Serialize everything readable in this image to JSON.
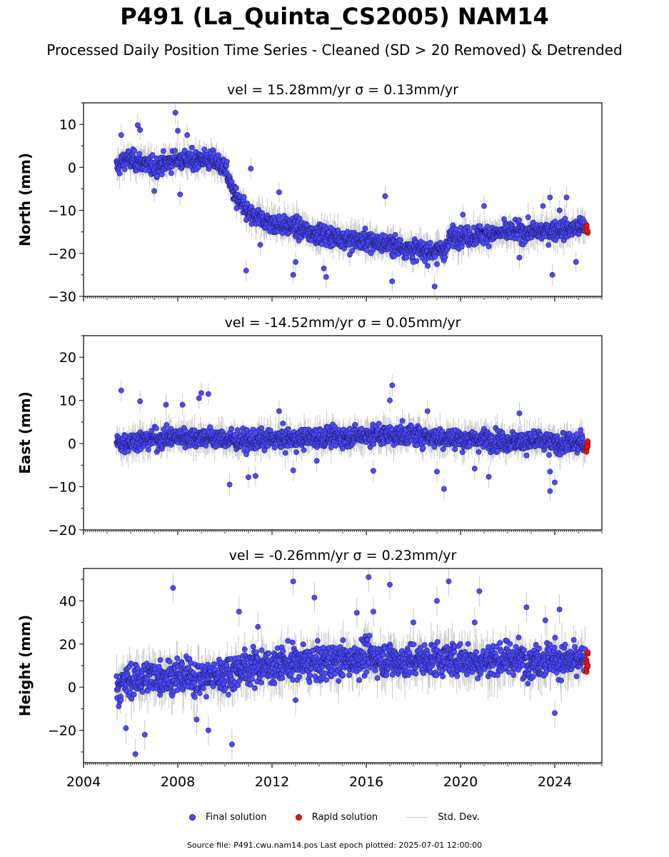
{
  "title": "P491 (La_Quinta_CS2005) NAM14",
  "subtitle": "Processed Daily Position Time Series - Cleaned (SD > 20 Removed) & Detrended",
  "footer": "Source file: P491.cwu.nam14.pos  Last epoch plotted: 2025-07-01 12:00:00",
  "legend": {
    "final": "Final solution",
    "rapid": "Rapid solution",
    "sd": "Std. Dev."
  },
  "colors": {
    "final_fill": "#4b4bff",
    "final_edge": "#1a1a66",
    "rapid_fill": "#ee1111",
    "std_dev": "#c8c8c8"
  },
  "chart_data": [
    {
      "type": "scatter",
      "title": "vel = 15.28mm/yr   σ = 0.13mm/yr",
      "ylabel": "North (mm)",
      "xlim": [
        2004,
        2026
      ],
      "ylim": [
        -30,
        15
      ],
      "yticks": [
        -30,
        -20,
        -10,
        0,
        10
      ],
      "series_final": [
        [
          2005.4,
          0
        ],
        [
          2005.8,
          2
        ],
        [
          2006.5,
          1
        ],
        [
          2007.0,
          0
        ],
        [
          2007.5,
          1
        ],
        [
          2008.0,
          2
        ],
        [
          2008.5,
          1.5
        ],
        [
          2009.0,
          2
        ],
        [
          2009.5,
          1.5
        ],
        [
          2010.0,
          0
        ],
        [
          2010.3,
          -5
        ],
        [
          2010.6,
          -8
        ],
        [
          2011.0,
          -11
        ],
        [
          2011.5,
          -12
        ],
        [
          2012.0,
          -13
        ],
        [
          2012.5,
          -13.5
        ],
        [
          2013.0,
          -14
        ],
        [
          2013.5,
          -15
        ],
        [
          2014.0,
          -15.5
        ],
        [
          2014.5,
          -16
        ],
        [
          2015.0,
          -16.5
        ],
        [
          2015.5,
          -17
        ],
        [
          2016.0,
          -17
        ],
        [
          2016.5,
          -17.5
        ],
        [
          2017.0,
          -18
        ],
        [
          2017.5,
          -18.5
        ],
        [
          2018.0,
          -19
        ],
        [
          2018.5,
          -19.5
        ],
        [
          2019.0,
          -19.5
        ],
        [
          2019.4,
          -19
        ],
        [
          2019.6,
          -16
        ],
        [
          2020.0,
          -16
        ],
        [
          2020.5,
          -16
        ],
        [
          2021.0,
          -15.5
        ],
        [
          2021.5,
          -15.5
        ],
        [
          2022.0,
          -15
        ],
        [
          2022.5,
          -15
        ],
        [
          2023.0,
          -15
        ],
        [
          2023.5,
          -15
        ],
        [
          2024.0,
          -14.5
        ],
        [
          2024.5,
          -14.5
        ],
        [
          2025.0,
          -14
        ],
        [
          2025.3,
          -14
        ]
      ],
      "series_rapid": [
        [
          2025.35,
          -14
        ],
        [
          2025.4,
          -15
        ]
      ],
      "outliers": [
        [
          2005.6,
          7.5
        ],
        [
          2006.3,
          9.8
        ],
        [
          2006.4,
          8.7
        ],
        [
          2007.0,
          -5.5
        ],
        [
          2007.9,
          12.7
        ],
        [
          2008.0,
          8.5
        ],
        [
          2008.1,
          -6.3
        ],
        [
          2008.4,
          7.5
        ],
        [
          2010.5,
          -9.5
        ],
        [
          2010.9,
          -24
        ],
        [
          2011.1,
          -0.3
        ],
        [
          2011.5,
          -18
        ],
        [
          2012.3,
          -5.8
        ],
        [
          2012.9,
          -25
        ],
        [
          2013.0,
          -22
        ],
        [
          2014.2,
          -23.5
        ],
        [
          2014.3,
          -25.5
        ],
        [
          2015.3,
          -20.3
        ],
        [
          2016.2,
          -20
        ],
        [
          2016.8,
          -6.7
        ],
        [
          2017.1,
          -26.5
        ],
        [
          2018.0,
          -22
        ],
        [
          2018.9,
          -27.7
        ],
        [
          2019.0,
          -22.5
        ],
        [
          2020.1,
          -11
        ],
        [
          2021.0,
          -9
        ],
        [
          2022.5,
          -21
        ],
        [
          2023.5,
          -9
        ],
        [
          2023.8,
          -7
        ],
        [
          2023.9,
          -25
        ],
        [
          2024.2,
          -10
        ],
        [
          2024.5,
          -7
        ],
        [
          2024.9,
          -22
        ]
      ]
    },
    {
      "type": "scatter",
      "title": "vel = -14.52mm/yr   σ = 0.05mm/yr",
      "ylabel": "East (mm)",
      "xlim": [
        2004,
        2026
      ],
      "ylim": [
        -20,
        25
      ],
      "yticks": [
        -20,
        -10,
        0,
        10,
        20
      ],
      "series_final": [
        [
          2005.4,
          0
        ],
        [
          2006.0,
          0.5
        ],
        [
          2007.0,
          1
        ],
        [
          2008.0,
          1.5
        ],
        [
          2009.0,
          1.5
        ],
        [
          2010.0,
          1
        ],
        [
          2011.0,
          0.5
        ],
        [
          2012.0,
          1
        ],
        [
          2013.0,
          1
        ],
        [
          2014.0,
          1.5
        ],
        [
          2015.0,
          1.5
        ],
        [
          2016.0,
          2
        ],
        [
          2017.0,
          2
        ],
        [
          2018.0,
          2
        ],
        [
          2019.0,
          1.5
        ],
        [
          2020.0,
          1
        ],
        [
          2021.0,
          1
        ],
        [
          2022.0,
          0.5
        ],
        [
          2023.0,
          0.5
        ],
        [
          2024.0,
          0
        ],
        [
          2025.0,
          0
        ],
        [
          2025.3,
          0
        ]
      ],
      "series_rapid": [
        [
          2025.35,
          -1
        ],
        [
          2025.4,
          0
        ]
      ],
      "outliers": [
        [
          2005.6,
          12.3
        ],
        [
          2006.4,
          9.8
        ],
        [
          2007.5,
          9
        ],
        [
          2008.2,
          9
        ],
        [
          2008.9,
          10.5
        ],
        [
          2009.0,
          11.7
        ],
        [
          2009.3,
          11.5
        ],
        [
          2010.2,
          -9.5
        ],
        [
          2011.0,
          -7.8
        ],
        [
          2011.3,
          -7.5
        ],
        [
          2012.3,
          7.5
        ],
        [
          2012.9,
          -6.2
        ],
        [
          2013.9,
          -4
        ],
        [
          2016.3,
          -6.3
        ],
        [
          2017.0,
          10
        ],
        [
          2017.1,
          13.5
        ],
        [
          2018.6,
          7.5
        ],
        [
          2019.0,
          -6.5
        ],
        [
          2019.3,
          -10.5
        ],
        [
          2020.6,
          -5.8
        ],
        [
          2021.2,
          -7.7
        ],
        [
          2022.5,
          7
        ],
        [
          2023.8,
          -6.5
        ],
        [
          2023.8,
          -11
        ],
        [
          2024.0,
          -9
        ]
      ]
    },
    {
      "type": "scatter",
      "title": "vel = -0.26mm/yr   σ = 0.23mm/yr",
      "ylabel": "Height (mm)",
      "xlim": [
        2004,
        2026
      ],
      "ylim": [
        -35,
        55
      ],
      "yticks": [
        -20,
        0,
        20,
        40
      ],
      "xticks": [
        2004,
        2008,
        2012,
        2016,
        2020,
        2024
      ],
      "series_final": [
        [
          2005.4,
          0
        ],
        [
          2006.0,
          3
        ],
        [
          2006.5,
          4
        ],
        [
          2007.0,
          5
        ],
        [
          2007.5,
          5
        ],
        [
          2008.0,
          5
        ],
        [
          2008.5,
          5
        ],
        [
          2009.0,
          4
        ],
        [
          2009.5,
          5
        ],
        [
          2010.0,
          6
        ],
        [
          2010.5,
          8
        ],
        [
          2011.0,
          9
        ],
        [
          2011.5,
          10
        ],
        [
          2012.0,
          10
        ],
        [
          2012.5,
          11
        ],
        [
          2013.0,
          11
        ],
        [
          2013.5,
          11
        ],
        [
          2014.0,
          11
        ],
        [
          2014.5,
          12
        ],
        [
          2015.0,
          12
        ],
        [
          2015.5,
          13
        ],
        [
          2016.0,
          15
        ],
        [
          2016.5,
          13
        ],
        [
          2017.0,
          13
        ],
        [
          2017.5,
          12
        ],
        [
          2018.0,
          12
        ],
        [
          2018.5,
          13
        ],
        [
          2019.0,
          13
        ],
        [
          2019.5,
          13
        ],
        [
          2020.0,
          13
        ],
        [
          2020.5,
          12
        ],
        [
          2021.0,
          12
        ],
        [
          2021.5,
          13
        ],
        [
          2022.0,
          13
        ],
        [
          2022.5,
          13
        ],
        [
          2023.0,
          12
        ],
        [
          2023.5,
          13
        ],
        [
          2024.0,
          13
        ],
        [
          2024.5,
          12
        ],
        [
          2025.0,
          12
        ],
        [
          2025.3,
          12
        ]
      ],
      "series_rapid": [
        [
          2025.35,
          8
        ],
        [
          2025.35,
          12
        ],
        [
          2025.4,
          16
        ],
        [
          2025.4,
          10
        ]
      ],
      "outliers": [
        [
          2005.8,
          -19
        ],
        [
          2006.2,
          -31
        ],
        [
          2006.6,
          -22
        ],
        [
          2007.8,
          46
        ],
        [
          2008.8,
          -15
        ],
        [
          2009.3,
          -20
        ],
        [
          2010.3,
          -26.5
        ],
        [
          2010.6,
          35
        ],
        [
          2011.4,
          28
        ],
        [
          2012.9,
          49
        ],
        [
          2013.0,
          -6
        ],
        [
          2013.8,
          41.5
        ],
        [
          2015.6,
          34.5
        ],
        [
          2016.1,
          51
        ],
        [
          2016.3,
          35
        ],
        [
          2017.0,
          47.5
        ],
        [
          2018.0,
          30
        ],
        [
          2019.0,
          40
        ],
        [
          2019.5,
          49
        ],
        [
          2020.6,
          30
        ],
        [
          2020.8,
          44.5
        ],
        [
          2022.8,
          37
        ],
        [
          2023.6,
          31
        ],
        [
          2024.0,
          -12
        ],
        [
          2024.2,
          36
        ]
      ]
    }
  ]
}
